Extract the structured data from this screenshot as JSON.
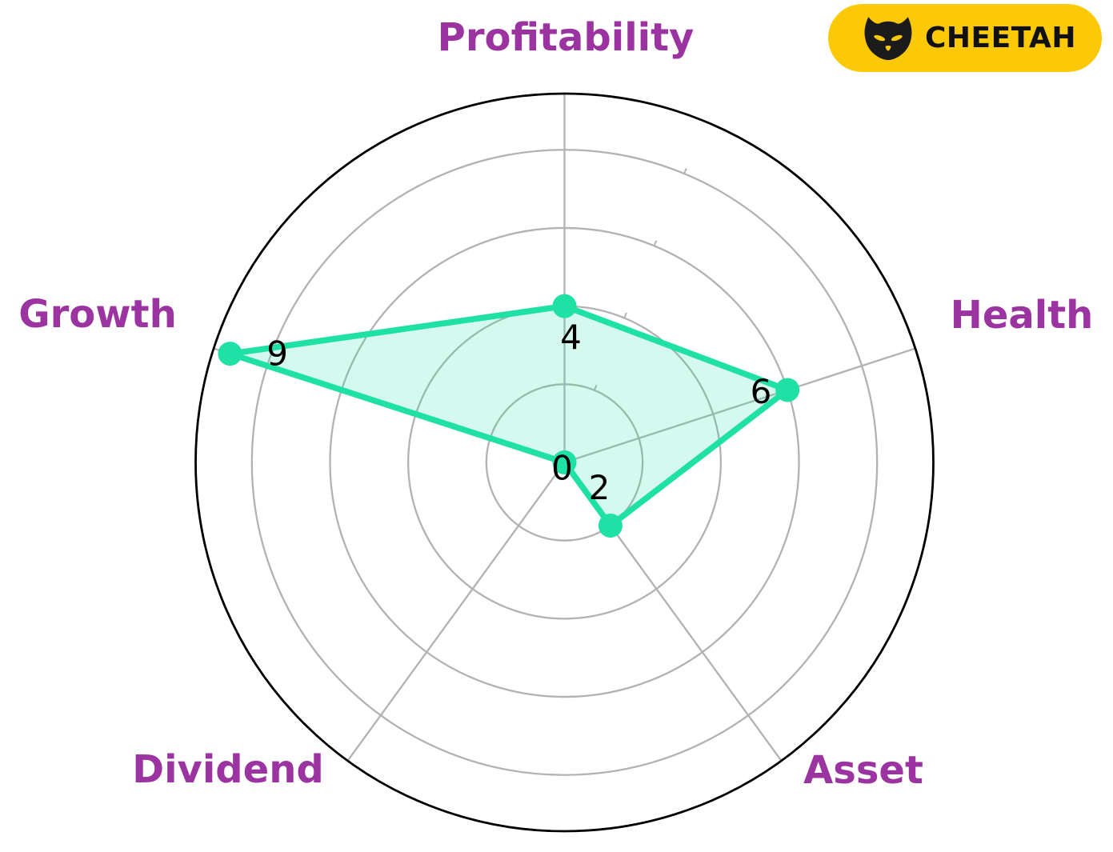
{
  "badge": {
    "label": "CHEETAH",
    "icon": "black-cat-face",
    "bg_color": "#fcc908",
    "text_color": "#111111"
  },
  "chart_data": {
    "type": "radar",
    "categories": [
      "Profitability",
      "Health",
      "Asset",
      "Dividend",
      "Growth"
    ],
    "values": [
      4,
      6,
      2,
      0,
      9
    ],
    "value_labels": [
      "4",
      "6",
      "2",
      "0",
      "9"
    ],
    "axis_range": [
      0,
      10
    ],
    "ring_values": [
      2,
      4,
      6,
      8
    ],
    "grid": true,
    "legend": false,
    "colors": {
      "series_line": "#1fe1a6",
      "series_fill": "rgba(31,225,166,0.19)",
      "marker": "#1fe1a6",
      "category_label": "#9b34a1",
      "value_label": "#000000",
      "grid_line": "#b2b2b2",
      "outer_ring": "#000000"
    }
  }
}
